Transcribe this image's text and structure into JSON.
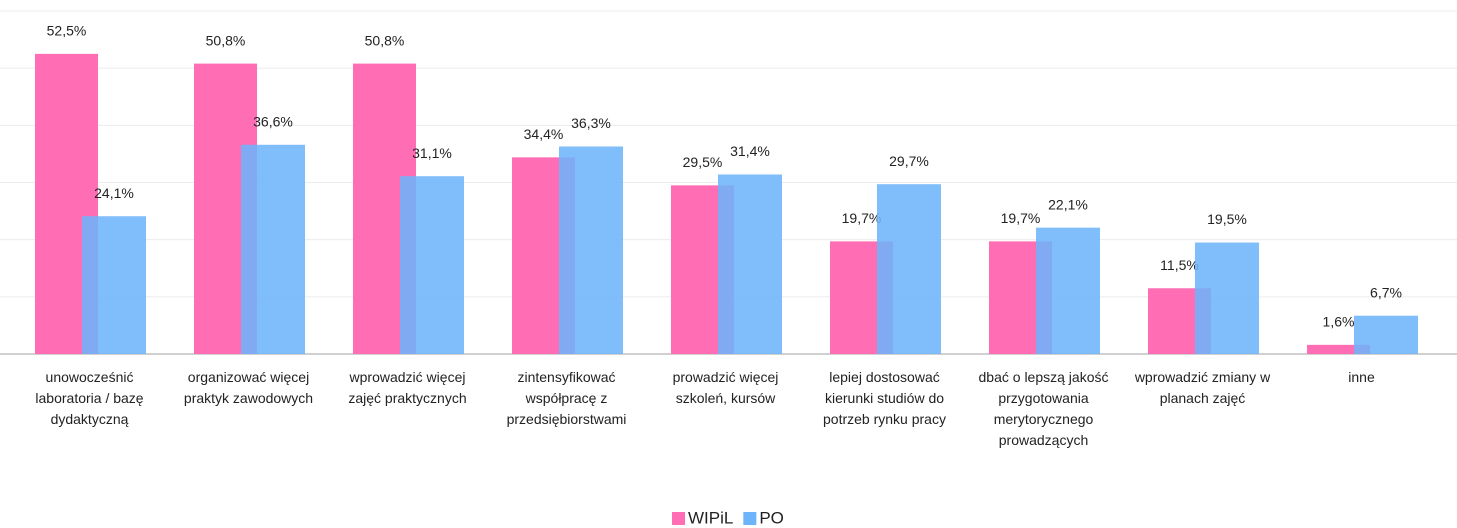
{
  "chart_data": {
    "type": "bar",
    "categories": [
      "unowocześnić laboratoria / bazę dydaktyczną",
      "organizować więcej praktyk zawodowych",
      "wprowadzić więcej zajęć praktycznych",
      "zintensyfikować współpracę z przedsiębiorstwami",
      "prowadzić więcej szkoleń, kursów",
      "lepiej dostosować kierunki studiów do potrzeb rynku pracy",
      "dbać o lepszą jakość przygotowania merytorycznego prowadzących",
      "wprowadzić zmiany w planach zajęć",
      "inne"
    ],
    "series": [
      {
        "name": "WIPiL",
        "color": "#ff6eb4",
        "values": [
          52.5,
          50.8,
          50.8,
          34.4,
          29.5,
          19.7,
          19.7,
          11.5,
          1.6
        ],
        "value_labels": [
          "52,5%",
          "50,8%",
          "50,8%",
          "34,4%",
          "29,5%",
          "19,7%",
          "19,7%",
          "11,5%",
          "1,6%"
        ]
      },
      {
        "name": "PO",
        "color": "#6eb4fa",
        "values": [
          24.1,
          36.6,
          31.1,
          36.3,
          31.4,
          29.7,
          22.1,
          19.5,
          6.7
        ],
        "value_labels": [
          "24,1%",
          "36,6%",
          "31,1%",
          "36,3%",
          "31,4%",
          "29,7%",
          "22,1%",
          "19,5%",
          "6,7%"
        ]
      }
    ],
    "ylim": [
      0,
      60
    ],
    "yticks": [
      0,
      10,
      20,
      30,
      40,
      50,
      60
    ],
    "grid": true,
    "legend": "bottom"
  }
}
